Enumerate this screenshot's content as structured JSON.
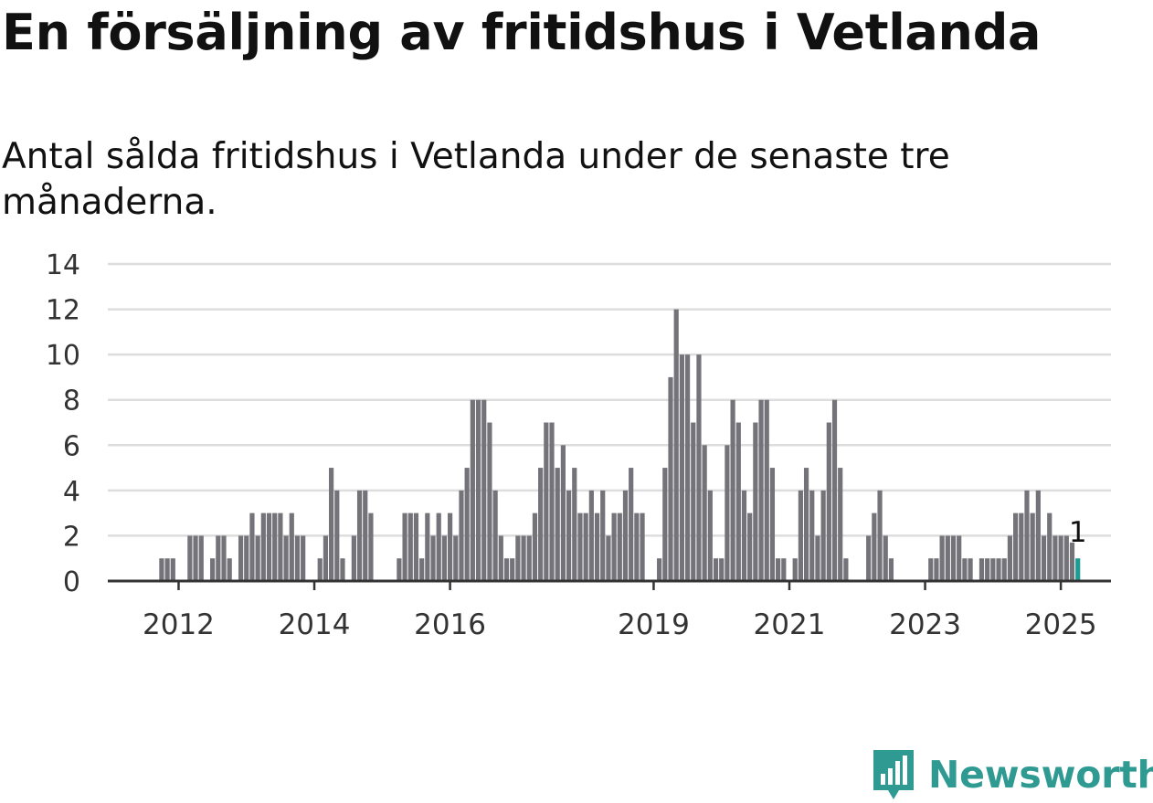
{
  "title": "En försäljning av fritidshus i Vetlanda",
  "subtitle": "Antal sålda fritidshus i Vetlanda under de senaste tre månaderna.",
  "logo": {
    "text": "Newsworthy"
  },
  "colors": {
    "bar": "#747379",
    "highlight": "#1e9c93",
    "grid": "#dddddd",
    "axis": "#333333",
    "brand": "#2f9a92"
  },
  "chart_data": {
    "type": "bar",
    "title": "En försäljning av fritidshus i Vetlanda",
    "subtitle": "Antal sålda fritidshus i Vetlanda under de senaste tre månaderna.",
    "xlabel": "",
    "ylabel": "",
    "ylim": [
      0,
      14
    ],
    "yticks": [
      0,
      2,
      4,
      6,
      8,
      10,
      12,
      14
    ],
    "xticks": [
      {
        "label": "2012",
        "index": 12
      },
      {
        "label": "2014",
        "index": 36
      },
      {
        "label": "2016",
        "index": 60
      },
      {
        "label": "2019",
        "index": 96
      },
      {
        "label": "2021",
        "index": 120
      },
      {
        "label": "2023",
        "index": 144
      },
      {
        "label": "2025",
        "index": 168
      }
    ],
    "start": "2011-01",
    "frequency": "monthly",
    "values": [
      0,
      0,
      0,
      0,
      0,
      0,
      0,
      0,
      0,
      1,
      1,
      1,
      0,
      0,
      2,
      2,
      2,
      0,
      1,
      2,
      2,
      1,
      0,
      2,
      2,
      3,
      2,
      3,
      3,
      3,
      3,
      2,
      3,
      2,
      2,
      0,
      0,
      1,
      2,
      5,
      4,
      1,
      0,
      2,
      4,
      4,
      3,
      0,
      0,
      0,
      0,
      1,
      3,
      3,
      3,
      1,
      3,
      2,
      3,
      2,
      3,
      2,
      4,
      5,
      8,
      8,
      8,
      7,
      4,
      2,
      1,
      1,
      2,
      2,
      2,
      3,
      5,
      7,
      7,
      5,
      6,
      4,
      5,
      3,
      3,
      4,
      3,
      4,
      2,
      3,
      3,
      4,
      5,
      3,
      3,
      0,
      0,
      1,
      5,
      9,
      12,
      10,
      10,
      7,
      10,
      6,
      4,
      1,
      1,
      6,
      8,
      7,
      4,
      3,
      7,
      8,
      8,
      5,
      1,
      1,
      0,
      1,
      4,
      5,
      4,
      2,
      4,
      7,
      8,
      5,
      1,
      0,
      0,
      0,
      2,
      3,
      4,
      2,
      1,
      0,
      0,
      0,
      0,
      0,
      0,
      1,
      1,
      2,
      2,
      2,
      2,
      1,
      1,
      0,
      1,
      1,
      1,
      1,
      1,
      2,
      3,
      3,
      4,
      3,
      4,
      2,
      3,
      2,
      2,
      2,
      1.7,
      1
    ],
    "highlight_index": 171,
    "annotation": {
      "label": "1",
      "index": 171,
      "value": 1
    },
    "grid": true,
    "legend": "none"
  }
}
